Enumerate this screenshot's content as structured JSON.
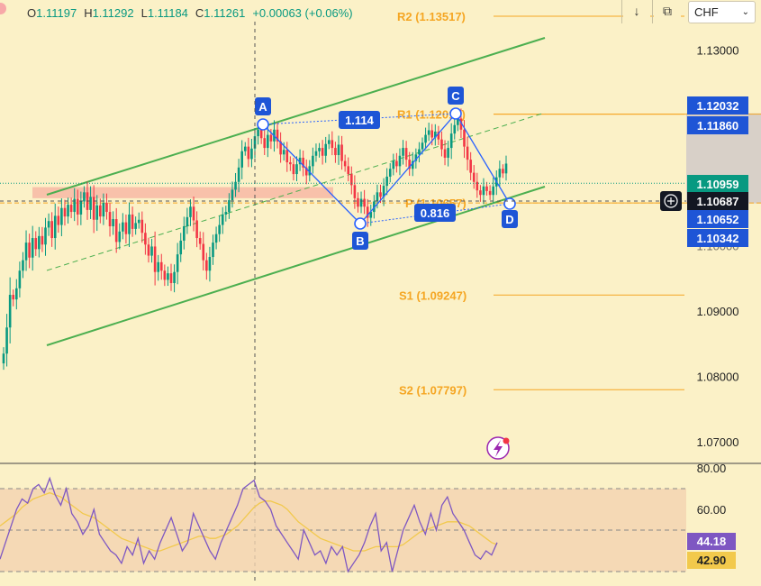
{
  "ohlc": {
    "open_label": "O",
    "open": "1.11197",
    "high_label": "H",
    "high": "1.11292",
    "low_label": "L",
    "low": "1.11184",
    "close_label": "C",
    "close": "1.11261",
    "change": "+0.00063 (+0.06%)"
  },
  "toolbar": {
    "currency": "CHF",
    "chevron_glyph": "⌄",
    "download_glyph": "↓",
    "layout_glyph": "⧉"
  },
  "colors": {
    "background": "#fbf1c7",
    "up": "#089981",
    "down": "#f23645",
    "channel": "#4caf50",
    "pattern": "#2962ff",
    "pivot": "#f5a623",
    "rsi": "#7e57c2",
    "rsi_ma": "#f2c94c",
    "label_blue": "#1e55d6",
    "zone": "#f7b0a0"
  },
  "chart_data": [
    {
      "type": "candlestick",
      "instrument_quote": "CHF",
      "ylim": [
        1.0673,
        1.1375
      ],
      "price_ticks": [
        "1.13000",
        "1.09000",
        "1.08000",
        "1.07000"
      ],
      "hidden_tick": "1.10000",
      "ohlc_last": {
        "open": 1.11197,
        "high": 1.11292,
        "low": 1.11184,
        "close": 1.11261,
        "change": 0.00063,
        "change_pct": 0.06
      },
      "price_labels": [
        {
          "value": "1.12032",
          "kind": "blue"
        },
        {
          "value": "1.11860",
          "kind": "blue-outline"
        },
        {
          "value": "1.10959",
          "kind": "green"
        },
        {
          "value": "1.10687",
          "kind": "dark"
        },
        {
          "value": "1.10652",
          "kind": "blue"
        },
        {
          "value": "1.10342",
          "kind": "blue"
        }
      ],
      "pivots": [
        {
          "name": "R2",
          "text": "R2 (1.13517)",
          "value": 1.13517
        },
        {
          "name": "R1",
          "text": "R1 (1.12017)",
          "value": 1.12017
        },
        {
          "name": "P",
          "text": "P (1.10657)",
          "value": 1.10657
        },
        {
          "name": "S1",
          "text": "S1 (1.09247)",
          "value": 1.09247
        },
        {
          "name": "S2",
          "text": "S2 (1.07797)",
          "value": 1.07797
        }
      ],
      "pattern": {
        "points": [
          {
            "label": "A",
            "price": 1.1186
          },
          {
            "label": "B",
            "price": 1.1034
          },
          {
            "label": "C",
            "price": 1.1203
          },
          {
            "label": "D",
            "price": 1.1065
          }
        ],
        "ratios": [
          "1.114",
          "0.816"
        ]
      },
      "support_zone": [
        1.1073,
        1.109
      ],
      "closes": [
        1.0835,
        1.0875,
        1.0925,
        1.0918,
        1.0935,
        1.0962,
        1.0978,
        1.1005,
        1.0982,
        1.1012,
        1.0995,
        1.1015,
        1.1002,
        1.1028,
        1.1038,
        1.1012,
        1.1046,
        1.1032,
        1.1058,
        1.1045,
        1.1063,
        1.1052,
        1.1072,
        1.1048,
        1.1068,
        1.1082,
        1.1055,
        1.1075,
        1.104,
        1.1062,
        1.1045,
        1.1066,
        1.1052,
        1.103,
        1.1041,
        1.1006,
        1.1022,
        1.1036,
        1.1018,
        1.1048,
        1.1026,
        1.1035,
        1.104,
        1.102,
        1.1002,
        1.0985,
        1.0999,
        1.096,
        1.0975,
        1.0962,
        1.0948,
        1.0958,
        1.0943,
        1.096,
        1.0987,
        1.1008,
        1.103,
        1.1044,
        1.106,
        1.1039,
        1.1012,
        1.1003,
        1.0978,
        1.0962,
        1.0983,
        1.1005,
        1.1018,
        1.1032,
        1.1048,
        1.1052,
        1.107,
        1.1086,
        1.1098,
        1.112,
        1.1145,
        1.1152,
        1.1133,
        1.1149,
        1.1168,
        1.1178,
        1.1165,
        1.115,
        1.117,
        1.116,
        1.1178,
        1.116,
        1.114,
        1.1147,
        1.1128,
        1.1125,
        1.111,
        1.1125,
        1.1135,
        1.112,
        1.1108,
        1.1122,
        1.1138,
        1.1145,
        1.115,
        1.1138,
        1.1156,
        1.1162,
        1.115,
        1.1139,
        1.1155,
        1.113,
        1.1122,
        1.111,
        1.1093,
        1.1073,
        1.106,
        1.1072,
        1.106,
        1.1043,
        1.1052,
        1.1068,
        1.1082,
        1.1075,
        1.1092,
        1.1106,
        1.1118,
        1.113,
        1.1122,
        1.1138,
        1.115,
        1.1132,
        1.1118,
        1.113,
        1.114,
        1.1148,
        1.1158,
        1.117,
        1.1177,
        1.1166,
        1.1175,
        1.1163,
        1.1148,
        1.1135,
        1.115,
        1.1172,
        1.1185,
        1.1195,
        1.1178,
        1.1152,
        1.1132,
        1.1112,
        1.1098,
        1.1085,
        1.1078,
        1.1091,
        1.1084,
        1.1078,
        1.1091,
        1.1105,
        1.1118,
        1.1111,
        1.1126
      ]
    },
    {
      "type": "line",
      "indicator": "RSI",
      "ylim": [
        30,
        82
      ],
      "ticks": [
        "80.00",
        "60.00"
      ],
      "levels": [
        70,
        50,
        30
      ],
      "rsi_value": "44.18",
      "rsi_ma_value": "42.90",
      "rsi": [
        36,
        44,
        52,
        60,
        65,
        63,
        70,
        72,
        68,
        75,
        67,
        62,
        70,
        58,
        54,
        48,
        52,
        60,
        48,
        44,
        40,
        38,
        34,
        42,
        38,
        46,
        34,
        40,
        36,
        44,
        50,
        56,
        48,
        40,
        44,
        58,
        52,
        46,
        40,
        36,
        44,
        50,
        56,
        62,
        70,
        72,
        74,
        66,
        64,
        60,
        52,
        48,
        44,
        40,
        36,
        50,
        44,
        38,
        40,
        34,
        42,
        38,
        42,
        30,
        34,
        38,
        44,
        52,
        58,
        40,
        44,
        30,
        40,
        50,
        56,
        62,
        54,
        48,
        58,
        50,
        62,
        66,
        58,
        54,
        50,
        44,
        38,
        36,
        40,
        38,
        44
      ],
      "rsi_ma": [
        52,
        54,
        56,
        58,
        61,
        63,
        65,
        66,
        67,
        68,
        67,
        66,
        64,
        62,
        60,
        58,
        57,
        56,
        54,
        52,
        50,
        48,
        46,
        45,
        44,
        43,
        42,
        41,
        40,
        40,
        41,
        42,
        43,
        44,
        45,
        46,
        47,
        47,
        46,
        46,
        47,
        48,
        50,
        52,
        55,
        58,
        61,
        63,
        64,
        64,
        63,
        62,
        60,
        57,
        54,
        52,
        50,
        48,
        46,
        45,
        44,
        43,
        42,
        41,
        40,
        40,
        40,
        41,
        42,
        42,
        42,
        42,
        42,
        43,
        45,
        47,
        49,
        50,
        51,
        52,
        53,
        54,
        54,
        54,
        53,
        52,
        50,
        48,
        46,
        44,
        43
      ]
    }
  ]
}
